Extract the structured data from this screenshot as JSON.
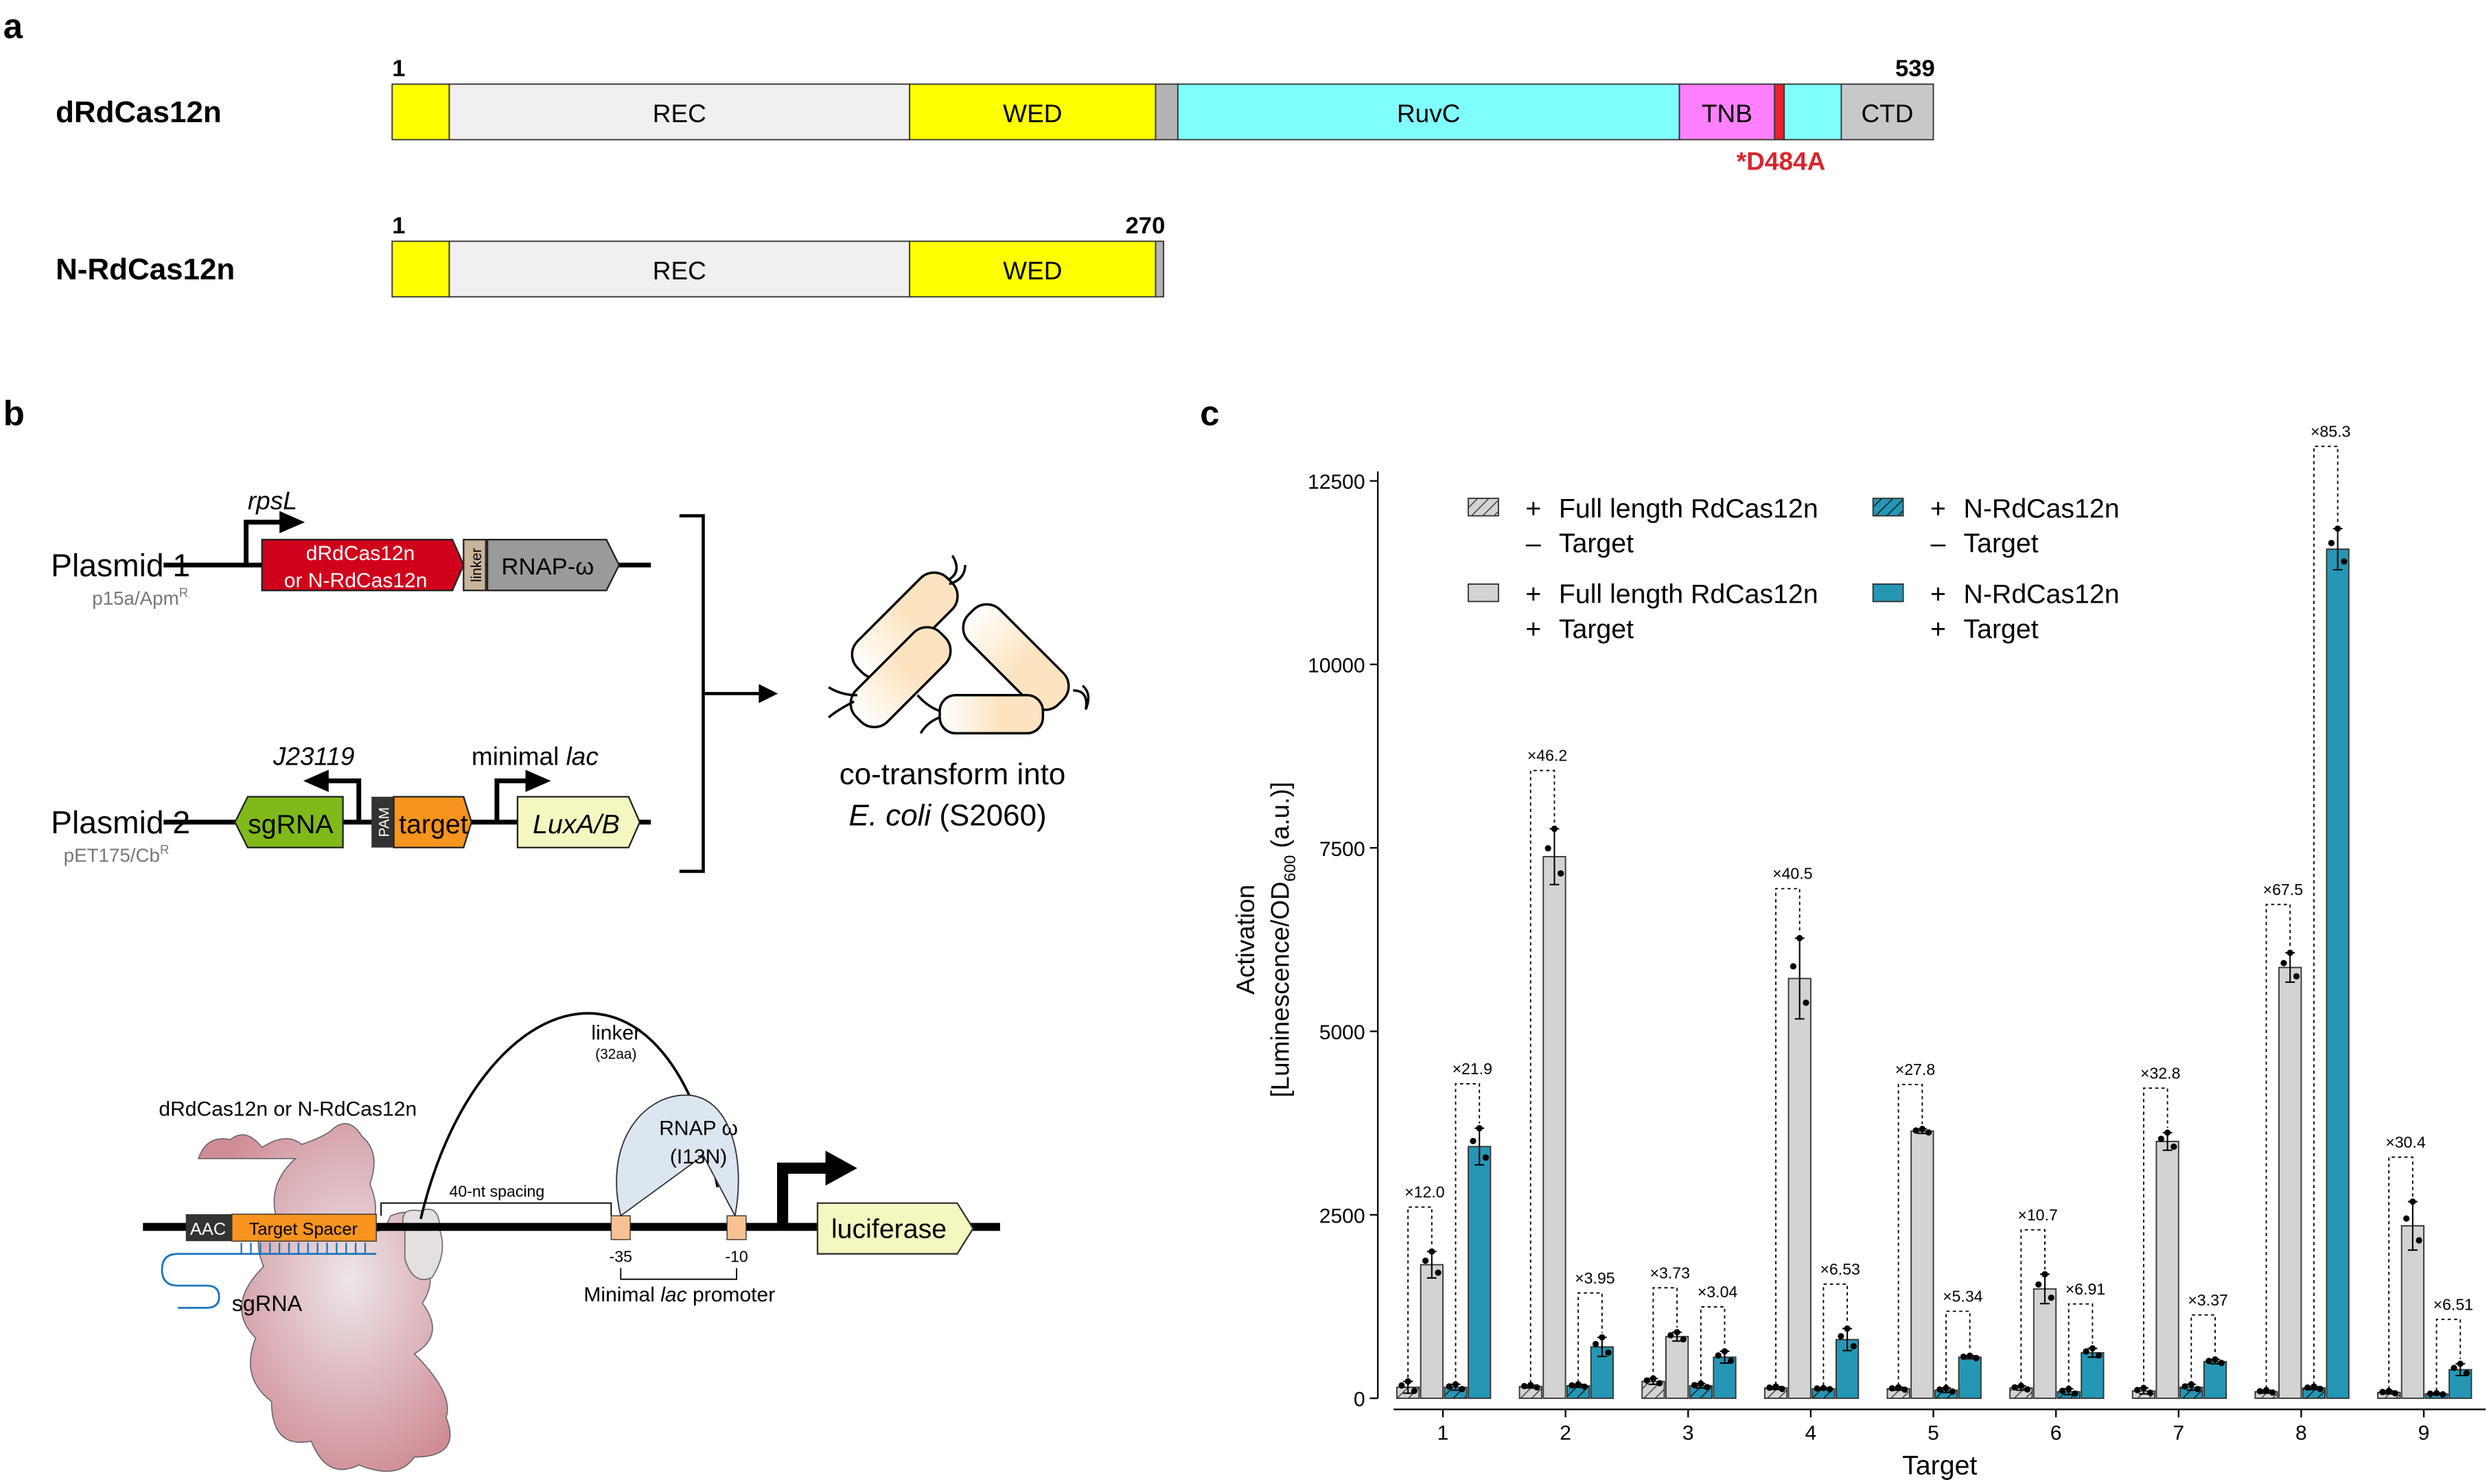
{
  "panel_labels": {
    "a": "a",
    "b": "b",
    "c": "c"
  },
  "panel_a": {
    "full": {
      "name": "dRdCas12n",
      "start": "1",
      "end": "539",
      "mutation": "*D484A",
      "domains": [
        {
          "label": "",
          "color": "#ffff00"
        },
        {
          "label": "REC",
          "color": "#f0f0f0"
        },
        {
          "label": "WED",
          "color": "#ffff00"
        },
        {
          "label": "",
          "color": "#b4b4b4"
        },
        {
          "label": "RuvC",
          "color": "#80ffff"
        },
        {
          "label": "TNB",
          "color": "#ff80ff"
        },
        {
          "label": "",
          "color": "#e8222c"
        },
        {
          "label": "",
          "color": "#80ffff"
        },
        {
          "label": "CTD",
          "color": "#c8c8c8"
        }
      ]
    },
    "truncated": {
      "name": "N-RdCas12n",
      "start": "1",
      "end": "270",
      "domains": [
        {
          "label": "",
          "color": "#ffff00"
        },
        {
          "label": "REC",
          "color": "#f0f0f0"
        },
        {
          "label": "WED",
          "color": "#ffff00"
        },
        {
          "label": "",
          "color": "#b4b4b4"
        }
      ]
    },
    "mutation_color": "#d7262e"
  },
  "panel_b": {
    "plasmid1": {
      "name": "Plasmid 1",
      "backbone": "p15a/Apm",
      "sup": "R",
      "promoter": "rpsL",
      "gene_line1": "dRdCas12n",
      "gene_line2": "or N-RdCas12n",
      "linker": "linker",
      "fusion": "RNAP-ω"
    },
    "plasmid2": {
      "name": "Plasmid 2",
      "backbone": "pET175/Cb",
      "sup": "R",
      "promoter1": "J23119",
      "promoter2_a": "minimal ",
      "promoter2_b": "lac",
      "sgrna": "sgRNA",
      "pam": "PAM",
      "target": "target",
      "reporter": "LuxA/B"
    },
    "cotransform_line1": "co-transform into",
    "cotransform_species": "E. coli",
    "cotransform_strain": " (S2060)",
    "mechanism": {
      "protein": "dRdCas12n or N-RdCas12n",
      "pam": "AAC",
      "spacer": "Target Spacer",
      "sgrna": "sgRNA",
      "linker": "linker",
      "linker_len": "(32aa)",
      "rnap_line1": "RNAP ω",
      "rnap_line2": "(I13N)",
      "spacing": "40-nt spacing",
      "minus35": "-35",
      "minus10": "-10",
      "promoter_a": "Minimal ",
      "promoter_b": "lac",
      "promoter_c": " promoter",
      "reporter": "luciferase"
    }
  },
  "chart_data": {
    "type": "bar",
    "xlabel": "Target",
    "ylabel_line1": "Activation",
    "ylabel_line2_a": "[Luminescence/OD",
    "ylabel_line2_sub": "600",
    "ylabel_line2_b": " (a.u.)]",
    "ylim": [
      0,
      12500
    ],
    "yticks": [
      "0",
      "2500",
      "5000",
      "7500",
      "10000",
      "12500"
    ],
    "categories": [
      "1",
      "2",
      "3",
      "4",
      "5",
      "6",
      "7",
      "8",
      "9"
    ],
    "legend_placement": "top",
    "series": [
      {
        "name": "Full length RdCas12n – Target",
        "sign1": "+",
        "label1": "Full length RdCas12n",
        "sign2": "–",
        "label2": "Target",
        "color": "#d3d3d3",
        "hatched": true,
        "values": [
          150,
          160,
          230,
          140,
          130,
          140,
          100,
          90,
          80
        ],
        "sd": [
          80,
          20,
          40,
          20,
          20,
          30,
          40,
          20,
          20
        ]
      },
      {
        "name": "Full length RdCas12n + Target",
        "sign1": "+",
        "label1": "Full length RdCas12n",
        "sign2": "+",
        "label2": "Target",
        "color": "#d3d3d3",
        "hatched": false,
        "values": [
          1820,
          7380,
          840,
          5720,
          3640,
          1490,
          3500,
          5870,
          2350
        ],
        "sd": [
          180,
          380,
          60,
          550,
          30,
          200,
          120,
          200,
          330
        ]
      },
      {
        "name": "N-RdCas12n – Target",
        "sign1": "+",
        "label1": "N-RdCas12n",
        "sign2": "–",
        "label2": "Target",
        "color": "#2596b4",
        "hatched": true,
        "values": [
          150,
          170,
          170,
          130,
          110,
          90,
          150,
          140,
          60
        ],
        "sd": [
          40,
          20,
          30,
          10,
          30,
          40,
          40,
          20,
          10
        ]
      },
      {
        "name": "N-RdCas12n + Target",
        "sign1": "+",
        "label1": "N-RdCas12n",
        "sign2": "+",
        "label2": "Target",
        "color": "#2596b4",
        "hatched": false,
        "values": [
          3430,
          700,
          560,
          800,
          560,
          620,
          500,
          11570,
          390
        ],
        "sd": [
          250,
          130,
          80,
          150,
          20,
          60,
          30,
          280,
          80
        ]
      }
    ],
    "fold_full": [
      "×12.0",
      "×46.2",
      "×3.73",
      "×40.5",
      "×27.8",
      "×10.7",
      "×32.8",
      "×67.5",
      "×30.4"
    ],
    "fold_n": [
      "×21.9",
      "×3.95",
      "×3.04",
      "×6.53",
      "×5.34",
      "×6.91",
      "×3.37",
      "×85.3",
      "×6.51"
    ],
    "grid": false
  }
}
